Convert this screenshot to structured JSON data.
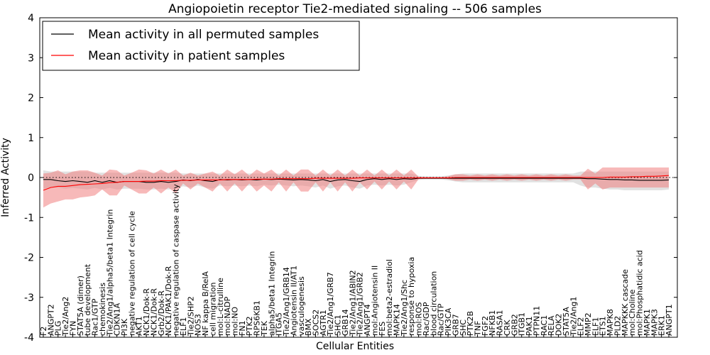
{
  "chart_data": {
    "type": "line",
    "title": "Angiopoietin receptor Tie2-mediated signaling -- 506 samples",
    "xlabel": "Cellular Entities",
    "ylabel": "Inferred Activity",
    "ylim": [
      -4,
      4
    ],
    "yticks": [
      -4,
      -3,
      -2,
      -1,
      0,
      1,
      2,
      3,
      4
    ],
    "legend_position": "top-left",
    "colors": {
      "permuted": "#000000",
      "patient": "#ff0000",
      "permuted_band": "#c8c8c8",
      "patient_band": "#f08080"
    },
    "categories": [
      "F2",
      "ANGPT2",
      "PLG",
      "Tie2/Ang2",
      "FYN",
      "STAT5A (dimer)",
      "tube development",
      "Rac1/GTP",
      "chemokinesis",
      "Tie2/Ang1/alpha5/beta1 Integrin",
      "CDKN1A",
      "PI3K",
      "negative regulation of cell cycle",
      "AKT1",
      "NCK1/Dok-R",
      "NCK1/Dok-R",
      "Grb2/Dok-R",
      "NCK1/PAK1/Dok-R",
      "negative regulation of caspase activity",
      "ELF1",
      "Tie2/SHP2",
      "NOS3",
      "NF kappa B/RelA",
      "cell migration",
      "mol:L-citrulline",
      "mol:NADP",
      "mol:NO",
      "FN1",
      "PTK2",
      "RPS6KB1",
      "TEK",
      "alpha5/beta1 Integrin",
      "ITGA5",
      "Tie2/Ang1/GRB14",
      "Angiotensin II/AT1",
      "vasculogenesis",
      "BMX",
      "SOCS2",
      "AGTR1",
      "Tie2/Ang1/GRB7",
      "SHC1",
      "GRB14",
      "Tie2/Ang1/ABIN2",
      "Tie2/Ang1/GRB2",
      "ANGPT4",
      "mol:Angiotensin II",
      "FES",
      "mol:beta2-estradiol",
      "MAPK14",
      "Tie2/Ang1/Shc",
      "response to hypoxia",
      "mol:ROS",
      "Rac/GDP",
      "blood circulation",
      "Rac/GTP",
      "PIK3CA",
      "GRB7",
      "SHC",
      "PTK2B",
      "TNF",
      "FGF2",
      "NFKB1",
      "RASA1",
      "CRK",
      "GRB2",
      "ITGB1",
      "PAK1",
      "PTPN11",
      "RAC1",
      "RELA",
      "DOK2",
      "STAT5A",
      "Tie2/Ang1",
      "ELF2",
      "MMP2",
      "ELF1",
      "ETS1",
      "MAPK8",
      "PLD2",
      "MAPKKK cascade",
      "mol:Choline",
      "mol:Phosphatidic acid",
      "MAPK1",
      "MAPK3",
      "ERK1",
      "ANGPT1"
    ],
    "series": [
      {
        "name": "Mean activity in all permuted samples",
        "values": [
          -0.05,
          -0.05,
          -0.08,
          -0.1,
          -0.08,
          -0.1,
          -0.12,
          -0.08,
          -0.12,
          -0.08,
          -0.12,
          -0.1,
          -0.1,
          -0.1,
          -0.12,
          -0.12,
          -0.1,
          -0.12,
          -0.1,
          -0.06,
          -0.08,
          -0.05,
          -0.08,
          -0.1,
          -0.05,
          -0.06,
          -0.05,
          -0.06,
          -0.05,
          -0.06,
          -0.04,
          -0.05,
          -0.04,
          -0.05,
          -0.06,
          -0.05,
          -0.06,
          -0.08,
          -0.05,
          -0.1,
          -0.06,
          -0.05,
          -0.08,
          -0.1,
          -0.05,
          -0.03,
          -0.05,
          -0.03,
          -0.05,
          -0.03,
          -0.04,
          -0.02,
          -0.02,
          -0.02,
          -0.02,
          -0.02,
          -0.02,
          -0.02,
          -0.02,
          -0.02,
          -0.02,
          -0.02,
          -0.02,
          -0.02,
          -0.02,
          -0.02,
          -0.02,
          -0.02,
          -0.02,
          -0.02,
          -0.02,
          -0.02,
          -0.02,
          -0.02,
          -0.03,
          -0.03,
          -0.04,
          -0.05,
          -0.05,
          -0.06,
          -0.06,
          -0.07,
          -0.07,
          -0.07,
          -0.07,
          -0.06
        ]
      },
      {
        "name": "Mean activity in patient samples",
        "values": [
          -0.32,
          -0.25,
          -0.22,
          -0.22,
          -0.2,
          -0.18,
          -0.17,
          -0.16,
          -0.15,
          -0.13,
          -0.12,
          -0.1,
          -0.1,
          -0.1,
          -0.09,
          -0.09,
          -0.08,
          -0.08,
          -0.08,
          -0.07,
          -0.07,
          -0.06,
          -0.06,
          -0.06,
          -0.06,
          -0.05,
          -0.05,
          -0.05,
          -0.05,
          -0.04,
          -0.04,
          -0.04,
          -0.03,
          -0.03,
          -0.03,
          -0.03,
          -0.03,
          -0.02,
          -0.02,
          -0.02,
          -0.02,
          -0.02,
          -0.02,
          -0.01,
          -0.01,
          -0.01,
          -0.01,
          -0.01,
          -0.01,
          -0.01,
          -0.01,
          -0.01,
          -0.01,
          -0.01,
          -0.01,
          -0.01,
          0.0,
          0.0,
          0.0,
          0.0,
          0.0,
          0.0,
          0.0,
          0.0,
          0.0,
          0.0,
          0.0,
          0.0,
          0.0,
          0.0,
          0.0,
          0.0,
          0.0,
          0.0,
          0.0,
          0.0,
          0.0,
          0.01,
          0.01,
          0.01,
          0.02,
          0.02,
          0.03,
          0.03,
          0.04,
          0.05
        ]
      }
    ],
    "permuted_band": {
      "upper": [
        0.18,
        0.15,
        0.15,
        0.15,
        0.15,
        0.15,
        0.15,
        0.12,
        0.12,
        0.12,
        0.12,
        0.12,
        0.12,
        0.12,
        0.12,
        0.12,
        0.12,
        0.12,
        0.12,
        0.1,
        0.1,
        0.1,
        0.1,
        0.1,
        0.1,
        0.1,
        0.1,
        0.1,
        0.1,
        0.1,
        0.1,
        0.1,
        0.1,
        0.1,
        0.1,
        0.1,
        0.1,
        0.1,
        0.1,
        0.1,
        0.1,
        0.1,
        0.1,
        0.1,
        0.1,
        0.1,
        0.1,
        0.1,
        0.1,
        0.1,
        0.1,
        0.04,
        0.03,
        0.03,
        0.03,
        0.05,
        0.08,
        0.1,
        0.1,
        0.1,
        0.1,
        0.1,
        0.1,
        0.1,
        0.1,
        0.1,
        0.1,
        0.1,
        0.1,
        0.1,
        0.1,
        0.1,
        0.1,
        0.15,
        0.15,
        0.15,
        0.15,
        0.15,
        0.15,
        0.15,
        0.15,
        0.15,
        0.15,
        0.15,
        0.15,
        0.15
      ],
      "lower": [
        -0.28,
        -0.25,
        -0.25,
        -0.28,
        -0.26,
        -0.28,
        -0.3,
        -0.26,
        -0.3,
        -0.26,
        -0.3,
        -0.28,
        -0.28,
        -0.28,
        -0.3,
        -0.3,
        -0.28,
        -0.3,
        -0.28,
        -0.22,
        -0.25,
        -0.2,
        -0.25,
        -0.28,
        -0.2,
        -0.22,
        -0.2,
        -0.22,
        -0.2,
        -0.22,
        -0.18,
        -0.2,
        -0.18,
        -0.2,
        -0.22,
        -0.2,
        -0.22,
        -0.25,
        -0.2,
        -0.28,
        -0.22,
        -0.2,
        -0.25,
        -0.28,
        -0.2,
        -0.18,
        -0.2,
        -0.18,
        -0.2,
        -0.18,
        -0.12,
        -0.06,
        -0.05,
        -0.05,
        -0.05,
        -0.07,
        -0.1,
        -0.12,
        -0.12,
        -0.12,
        -0.12,
        -0.12,
        -0.12,
        -0.12,
        -0.12,
        -0.12,
        -0.12,
        -0.12,
        -0.12,
        -0.12,
        -0.12,
        -0.12,
        -0.12,
        -0.2,
        -0.25,
        -0.25,
        -0.28,
        -0.3,
        -0.3,
        -0.32,
        -0.32,
        -0.32,
        -0.32,
        -0.32,
        -0.32,
        -0.3
      ]
    },
    "patient_band": {
      "upper": [
        0.1,
        0.12,
        0.18,
        0.08,
        0.15,
        0.18,
        0.18,
        0.12,
        0.05,
        0.2,
        0.18,
        0.05,
        0.12,
        0.2,
        0.18,
        0.1,
        0.2,
        0.1,
        0.2,
        0.05,
        0.12,
        0.05,
        0.1,
        0.15,
        0.05,
        0.2,
        0.08,
        0.2,
        0.05,
        0.2,
        0.1,
        0.2,
        0.05,
        0.2,
        0.05,
        0.2,
        0.2,
        0.05,
        0.2,
        0.05,
        0.2,
        0.05,
        0.2,
        0.05,
        0.2,
        0.05,
        0.2,
        0.05,
        0.2,
        0.05,
        0.2,
        0.02,
        0.01,
        0.01,
        0.01,
        0.03,
        0.08,
        0.08,
        0.05,
        0.08,
        0.05,
        0.08,
        0.05,
        0.08,
        0.05,
        0.08,
        0.05,
        0.08,
        0.05,
        0.08,
        0.05,
        0.08,
        0.05,
        0.05,
        0.22,
        0.1,
        0.25,
        0.25,
        0.25,
        0.25,
        0.25,
        0.25,
        0.25,
        0.25,
        0.25,
        0.25
      ],
      "lower": [
        -0.75,
        -0.65,
        -0.6,
        -0.55,
        -0.55,
        -0.5,
        -0.48,
        -0.45,
        -0.3,
        -0.45,
        -0.45,
        -0.2,
        -0.3,
        -0.4,
        -0.4,
        -0.25,
        -0.4,
        -0.25,
        -0.4,
        -0.15,
        -0.3,
        -0.15,
        -0.25,
        -0.35,
        -0.15,
        -0.35,
        -0.15,
        -0.35,
        -0.15,
        -0.35,
        -0.2,
        -0.35,
        -0.12,
        -0.35,
        -0.12,
        -0.35,
        -0.35,
        -0.12,
        -0.35,
        -0.12,
        -0.35,
        -0.12,
        -0.35,
        -0.12,
        -0.3,
        -0.1,
        -0.3,
        -0.1,
        -0.3,
        -0.1,
        -0.3,
        -0.04,
        -0.02,
        -0.02,
        -0.02,
        -0.04,
        -0.08,
        -0.08,
        -0.05,
        -0.08,
        -0.05,
        -0.08,
        -0.05,
        -0.08,
        -0.05,
        -0.08,
        -0.05,
        -0.08,
        -0.05,
        -0.08,
        -0.05,
        -0.08,
        -0.05,
        -0.05,
        -0.3,
        -0.15,
        -0.3,
        -0.25,
        -0.25,
        -0.25,
        -0.25,
        -0.25,
        -0.25,
        -0.25,
        -0.25,
        -0.25
      ]
    }
  }
}
